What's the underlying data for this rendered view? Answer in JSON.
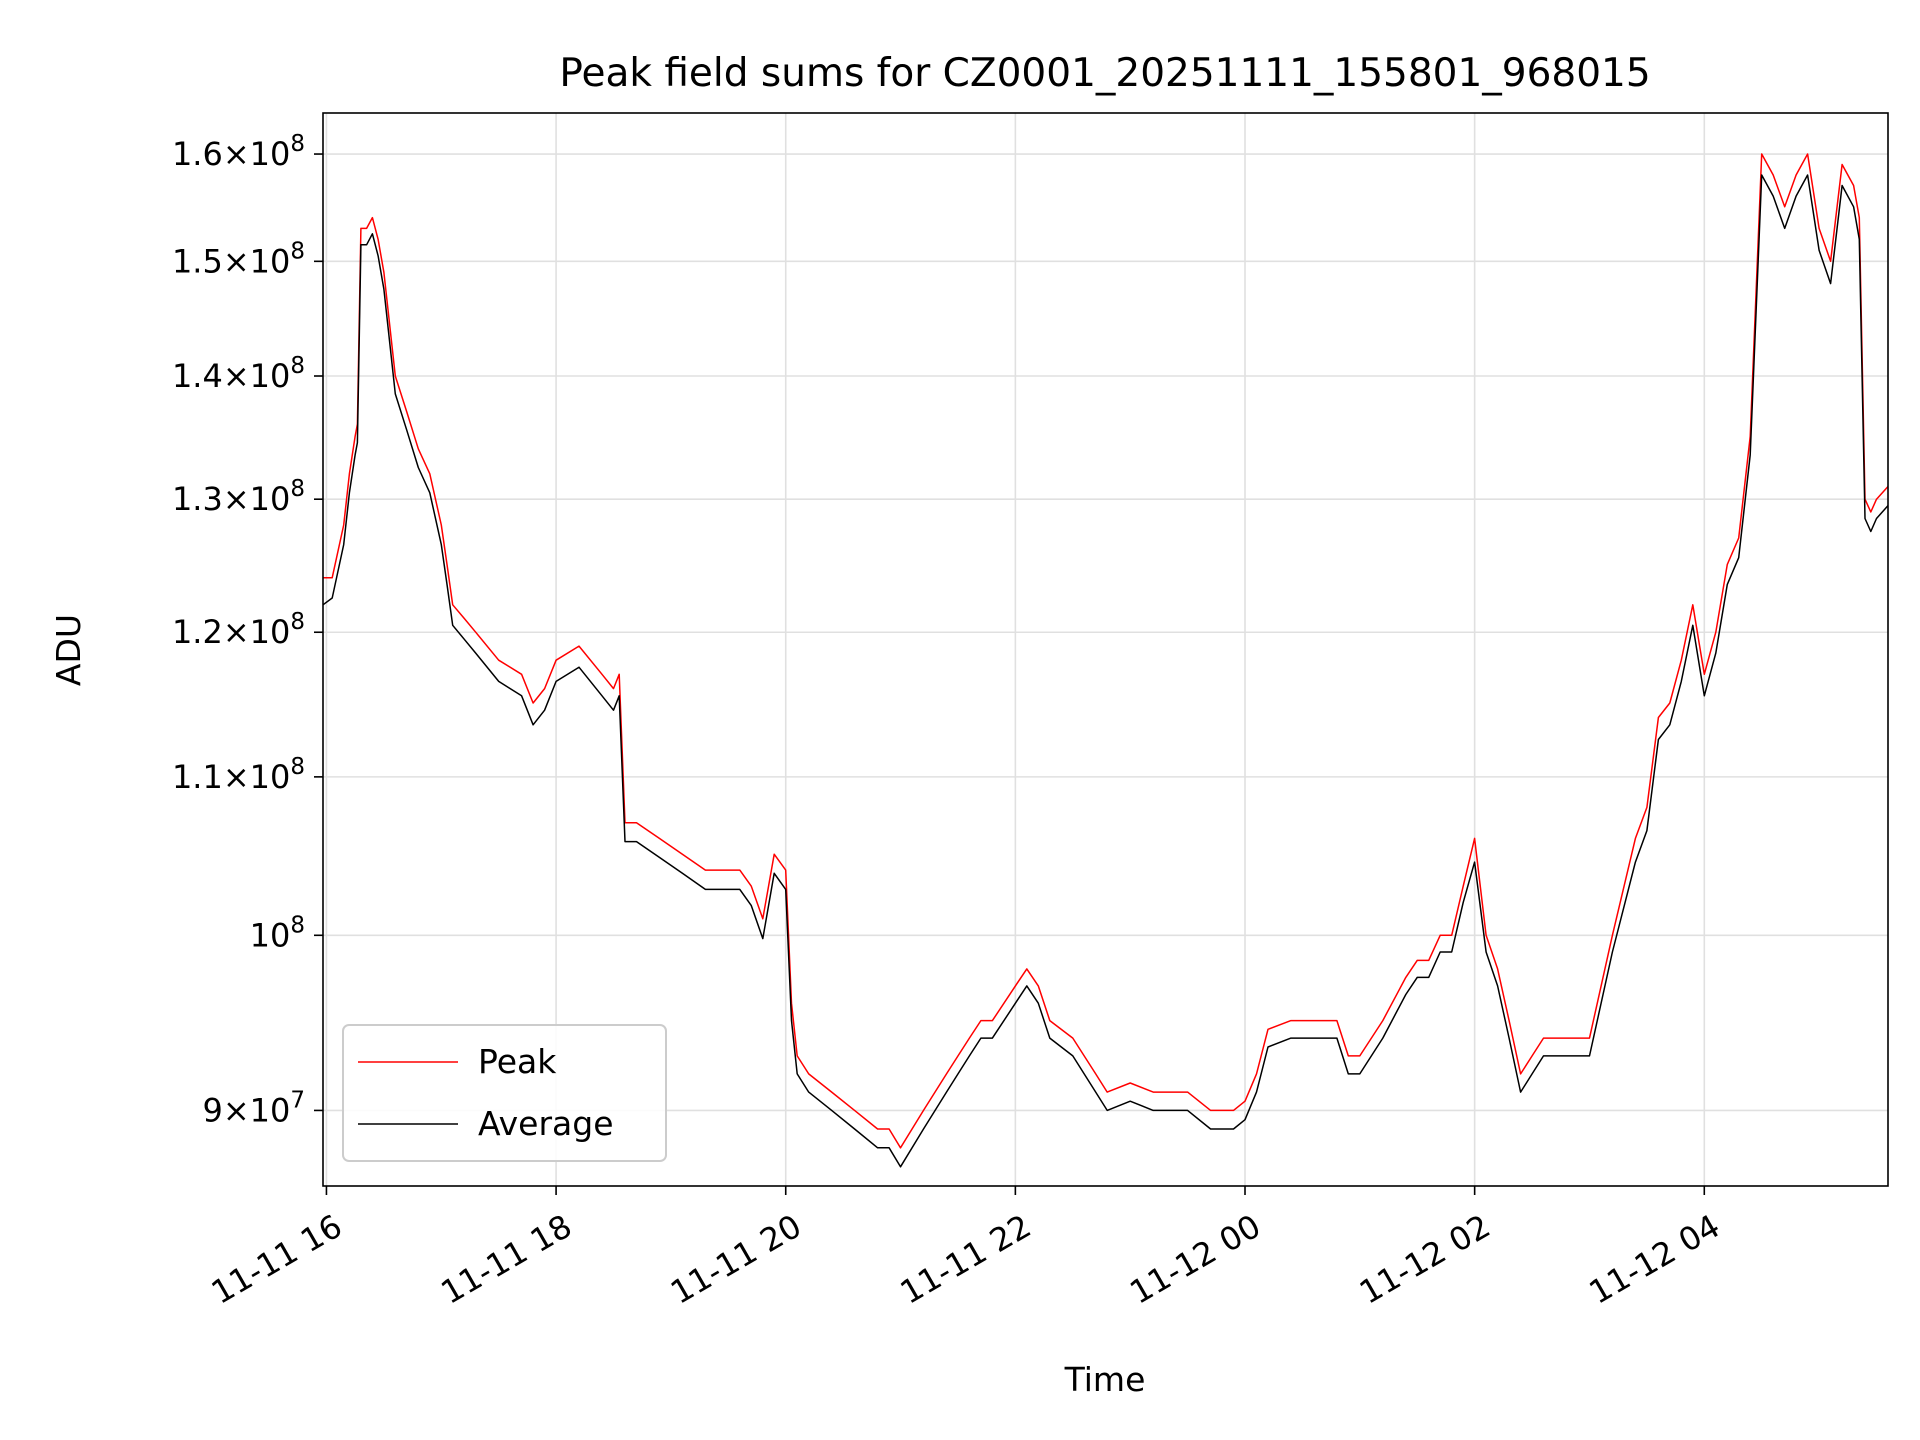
{
  "chart_data": {
    "type": "line",
    "title": "Peak field sums for CZ0001_20251111_155801_968015",
    "xlabel": "Time",
    "ylabel": "ADU",
    "yscale": "log",
    "grid": true,
    "legend_position": "lower-left",
    "x_unit": "hours since 2025-11-11 00:00",
    "xlim": [
      15.97,
      29.6
    ],
    "ylim": [
      86000000,
      164000000
    ],
    "x_ticks": [
      {
        "value": 16,
        "label": "11-11 16"
      },
      {
        "value": 18,
        "label": "11-11 18"
      },
      {
        "value": 20,
        "label": "11-11 20"
      },
      {
        "value": 22,
        "label": "11-11 22"
      },
      {
        "value": 24,
        "label": "11-12 00"
      },
      {
        "value": 26,
        "label": "11-12 02"
      },
      {
        "value": 28,
        "label": "11-12 04"
      }
    ],
    "y_ticks": [
      {
        "value": 90000000,
        "mantissa": "9",
        "exp": "7",
        "plain": false
      },
      {
        "value": 100000000,
        "mantissa": "",
        "exp": "8",
        "plain": true
      },
      {
        "value": 110000000,
        "mantissa": "1.1",
        "exp": "8",
        "plain": false
      },
      {
        "value": 120000000,
        "mantissa": "1.2",
        "exp": "8",
        "plain": false
      },
      {
        "value": 130000000,
        "mantissa": "1.3",
        "exp": "8",
        "plain": false
      },
      {
        "value": 140000000,
        "mantissa": "1.4",
        "exp": "8",
        "plain": false
      },
      {
        "value": 150000000,
        "mantissa": "1.5",
        "exp": "8",
        "plain": false
      },
      {
        "value": 160000000,
        "mantissa": "1.6",
        "exp": "8",
        "plain": false
      }
    ],
    "series": [
      {
        "name": "Peak",
        "color": "#ff0000",
        "x": [
          15.97,
          16.05,
          16.15,
          16.2,
          16.25,
          16.27,
          16.3,
          16.35,
          16.4,
          16.45,
          16.5,
          16.6,
          16.7,
          16.8,
          16.9,
          17.0,
          17.05,
          17.1,
          17.2,
          17.3,
          17.5,
          17.7,
          17.8,
          17.9,
          18.0,
          18.2,
          18.4,
          18.5,
          18.55,
          18.6,
          18.7,
          18.9,
          19.1,
          19.3,
          19.5,
          19.6,
          19.7,
          19.8,
          19.9,
          20.0,
          20.05,
          20.1,
          20.2,
          20.4,
          20.6,
          20.8,
          20.9,
          21.0,
          21.2,
          21.4,
          21.5,
          21.6,
          21.7,
          21.8,
          22.0,
          22.1,
          22.2,
          22.3,
          22.5,
          22.7,
          22.8,
          23.0,
          23.2,
          23.5,
          23.7,
          23.9,
          24.0,
          24.1,
          24.2,
          24.4,
          24.6,
          24.7,
          24.8,
          24.9,
          25.0,
          25.2,
          25.4,
          25.5,
          25.6,
          25.7,
          25.8,
          25.9,
          26.0,
          26.1,
          26.2,
          26.3,
          26.4,
          26.5,
          26.6,
          26.8,
          27.0,
          27.2,
          27.4,
          27.5,
          27.6,
          27.7,
          27.8,
          27.9,
          28.0,
          28.1,
          28.2,
          28.3,
          28.4,
          28.5,
          28.6,
          28.7,
          28.8,
          28.9,
          29.0,
          29.1,
          29.2,
          29.3,
          29.35,
          29.4,
          29.45,
          29.5,
          29.6
        ],
        "y": [
          124000000,
          124000000,
          128000000,
          132000000,
          135000000,
          136000000,
          153000000,
          153000000,
          154000000,
          152000000,
          149000000,
          140000000,
          137000000,
          134000000,
          132000000,
          128000000,
          125000000,
          122000000,
          121000000,
          120000000,
          118000000,
          117000000,
          115000000,
          116000000,
          118000000,
          119000000,
          117000000,
          116000000,
          117000000,
          107000000,
          107000000,
          106000000,
          105000000,
          104000000,
          104000000,
          104000000,
          103000000,
          101000000,
          105000000,
          104000000,
          96000000,
          93000000,
          92000000,
          91000000,
          90000000,
          89000000,
          89000000,
          88000000,
          90000000,
          92000000,
          93000000,
          94000000,
          95000000,
          95000000,
          97000000,
          98000000,
          97000000,
          95000000,
          94000000,
          92000000,
          91000000,
          91500000,
          91000000,
          91000000,
          90000000,
          90000000,
          90500000,
          92000000,
          94500000,
          95000000,
          95000000,
          95000000,
          95000000,
          93000000,
          93000000,
          95000000,
          97500000,
          98500000,
          98500000,
          100000000,
          100000000,
          103000000,
          106000000,
          100000000,
          98000000,
          95000000,
          92000000,
          93000000,
          94000000,
          94000000,
          94000000,
          100000000,
          106000000,
          108000000,
          114000000,
          115000000,
          118000000,
          122000000,
          117000000,
          120000000,
          125000000,
          127000000,
          135000000,
          160000000,
          158000000,
          155000000,
          158000000,
          160000000,
          153000000,
          150000000,
          159000000,
          157000000,
          154000000,
          130000000,
          129000000,
          130000000,
          131000000
        ]
      },
      {
        "name": "Average",
        "color": "#000000",
        "x": [
          15.97,
          16.05,
          16.15,
          16.2,
          16.25,
          16.27,
          16.3,
          16.35,
          16.4,
          16.45,
          16.5,
          16.6,
          16.7,
          16.8,
          16.9,
          17.0,
          17.05,
          17.1,
          17.2,
          17.3,
          17.5,
          17.7,
          17.8,
          17.9,
          18.0,
          18.2,
          18.4,
          18.5,
          18.55,
          18.6,
          18.7,
          18.9,
          19.1,
          19.3,
          19.5,
          19.6,
          19.7,
          19.8,
          19.9,
          20.0,
          20.05,
          20.1,
          20.2,
          20.4,
          20.6,
          20.8,
          20.9,
          21.0,
          21.2,
          21.4,
          21.5,
          21.6,
          21.7,
          21.8,
          22.0,
          22.1,
          22.2,
          22.3,
          22.5,
          22.7,
          22.8,
          23.0,
          23.2,
          23.5,
          23.7,
          23.9,
          24.0,
          24.1,
          24.2,
          24.4,
          24.6,
          24.7,
          24.8,
          24.9,
          25.0,
          25.2,
          25.4,
          25.5,
          25.6,
          25.7,
          25.8,
          25.9,
          26.0,
          26.1,
          26.2,
          26.3,
          26.4,
          26.5,
          26.6,
          26.8,
          27.0,
          27.2,
          27.4,
          27.5,
          27.6,
          27.7,
          27.8,
          27.9,
          28.0,
          28.1,
          28.2,
          28.3,
          28.4,
          28.5,
          28.6,
          28.7,
          28.8,
          28.9,
          29.0,
          29.1,
          29.2,
          29.3,
          29.35,
          29.4,
          29.45,
          29.5,
          29.6
        ],
        "y": [
          122000000,
          122500000,
          126500000,
          130500000,
          133500000,
          134500000,
          151500000,
          151500000,
          152500000,
          150500000,
          147500000,
          138500000,
          135500000,
          132500000,
          130500000,
          126500000,
          123500000,
          120500000,
          119500000,
          118500000,
          116500000,
          115500000,
          113500000,
          114500000,
          116500000,
          117500000,
          115500000,
          114500000,
          115500000,
          105800000,
          105800000,
          104800000,
          103800000,
          102800000,
          102800000,
          102800000,
          101800000,
          99800000,
          103800000,
          102800000,
          95000000,
          92000000,
          91000000,
          90000000,
          89000000,
          88000000,
          88000000,
          87000000,
          89000000,
          91000000,
          92000000,
          93000000,
          94000000,
          94000000,
          96000000,
          97000000,
          96000000,
          94000000,
          93000000,
          91000000,
          90000000,
          90500000,
          90000000,
          90000000,
          89000000,
          89000000,
          89500000,
          91000000,
          93500000,
          94000000,
          94000000,
          94000000,
          94000000,
          92000000,
          92000000,
          94000000,
          96500000,
          97500000,
          97500000,
          99000000,
          99000000,
          102000000,
          104500000,
          99000000,
          97000000,
          94000000,
          91000000,
          92000000,
          93000000,
          93000000,
          93000000,
          99000000,
          104500000,
          106500000,
          112500000,
          113500000,
          116500000,
          120500000,
          115500000,
          118500000,
          123500000,
          125500000,
          133500000,
          158000000,
          156000000,
          153000000,
          156000000,
          158000000,
          151000000,
          148000000,
          157000000,
          155000000,
          152000000,
          128500000,
          127500000,
          128500000,
          129500000
        ]
      }
    ]
  }
}
